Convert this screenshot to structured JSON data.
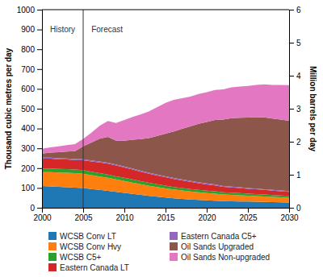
{
  "chart_data": {
    "type": "area",
    "stacked": true,
    "x": [
      2000,
      2001,
      2002,
      2003,
      2004,
      2005,
      2006,
      2007,
      2008,
      2009,
      2010,
      2011,
      2012,
      2013,
      2014,
      2015,
      2016,
      2017,
      2018,
      2019,
      2020,
      2021,
      2022,
      2023,
      2024,
      2025,
      2026,
      2027,
      2028,
      2029,
      2030
    ],
    "series": [
      {
        "name": "WCSB Conv LT",
        "values": [
          110,
          108,
          106,
          104,
          102,
          100,
          95,
          90,
          85,
          80,
          75,
          70,
          65,
          60,
          56,
          52,
          48,
          45,
          42,
          40,
          38,
          36,
          34,
          33,
          32,
          31,
          30,
          29,
          28,
          27,
          26
        ]
      },
      {
        "name": "WCSB Conv Hvy",
        "values": [
          70,
          72,
          72,
          73,
          73,
          72,
          70,
          68,
          66,
          63,
          60,
          57,
          54,
          51,
          49,
          46,
          44,
          42,
          40,
          38,
          36,
          35,
          33,
          32,
          31,
          30,
          29,
          28,
          27,
          26,
          25
        ]
      },
      {
        "name": "WCSB C5+",
        "values": [
          18,
          18,
          18,
          18,
          18,
          18,
          17,
          17,
          17,
          16,
          16,
          16,
          15,
          15,
          14,
          14,
          13,
          13,
          13,
          12,
          12,
          12,
          11,
          11,
          11,
          10,
          10,
          10,
          9,
          9,
          9
        ]
      },
      {
        "name": "Eastern Canada LT",
        "values": [
          50,
          50,
          49,
          49,
          48,
          50,
          52,
          54,
          55,
          54,
          52,
          50,
          48,
          46,
          44,
          42,
          40,
          38,
          36,
          34,
          32,
          30,
          28,
          27,
          26,
          25,
          24,
          23,
          22,
          21,
          20
        ]
      },
      {
        "name": "Eastern Canada C5+",
        "values": [
          5,
          5,
          5,
          5,
          5,
          5,
          5,
          5,
          5,
          5,
          5,
          5,
          5,
          5,
          5,
          5,
          5,
          5,
          5,
          5,
          5,
          5,
          4,
          4,
          4,
          4,
          4,
          4,
          4,
          4,
          4
        ]
      },
      {
        "name": "Oil Sands Upgraded",
        "values": [
          20,
          25,
          30,
          35,
          40,
          65,
          90,
          115,
          130,
          120,
          130,
          145,
          160,
          175,
          195,
          215,
          235,
          255,
          275,
          295,
          310,
          325,
          335,
          345,
          350,
          355,
          360,
          362,
          360,
          358,
          355
        ]
      },
      {
        "name": "Oil Sands Non-upgraded",
        "values": [
          25,
          27,
          30,
          32,
          35,
          38,
          50,
          65,
          80,
          90,
          105,
          115,
          125,
          135,
          145,
          155,
          160,
          155,
          150,
          150,
          150,
          152,
          153,
          156,
          158,
          160,
          163,
          167,
          170,
          175,
          180
        ]
      }
    ],
    "xlim": [
      2000,
      2030
    ],
    "xticks": [
      2000,
      2005,
      2010,
      2015,
      2020,
      2025,
      2030
    ],
    "ylim": [
      0,
      1000
    ],
    "yticks": [
      0,
      100,
      200,
      300,
      400,
      500,
      600,
      700,
      800,
      900,
      1000
    ],
    "y_label": "Thousand cubic metres per day",
    "y2lim": [
      0,
      6
    ],
    "y2ticks": [
      0,
      1,
      2,
      3,
      4,
      5,
      6
    ],
    "y2_label": "Million barrels per day",
    "vlines": [
      2005
    ],
    "annotations": [
      {
        "text": "History",
        "x": 2002.5,
        "y": 920
      },
      {
        "text": "Forecast",
        "x": 2006,
        "y": 920
      }
    ],
    "grid": false,
    "legend": "bottom"
  }
}
